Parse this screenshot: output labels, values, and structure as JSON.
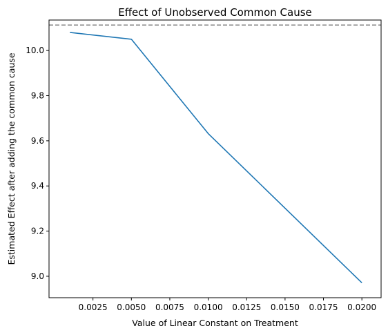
{
  "chart_data": {
    "type": "line",
    "title": "Effect of Unobserved Common Cause",
    "xlabel": "Value of Linear Constant on Treatment",
    "ylabel": "Estimated Effect after adding the common cause",
    "xlim": [
      -0.00036,
      0.02125
    ],
    "ylim": [
      8.905,
      10.135
    ],
    "xticks": [
      0.0025,
      0.005,
      0.0075,
      0.01,
      0.0125,
      0.015,
      0.0175,
      0.02
    ],
    "xtick_labels": [
      "0.0025",
      "0.0050",
      "0.0075",
      "0.0100",
      "0.0125",
      "0.0150",
      "0.0175",
      "0.0200"
    ],
    "yticks": [
      9.0,
      9.2,
      9.4,
      9.6,
      9.8,
      10.0
    ],
    "ytick_labels": [
      "9.0",
      "9.2",
      "9.4",
      "9.6",
      "9.8",
      "10.0"
    ],
    "grid": false,
    "series": [
      {
        "x": [
          0.001,
          0.005,
          0.01,
          0.02
        ],
        "y": [
          10.08,
          10.05,
          9.632,
          8.971
        ],
        "color": "#1f77b4",
        "style": "solid"
      }
    ],
    "reference_lines": [
      {
        "orientation": "horizontal",
        "y": 10.113,
        "color": "#808080",
        "style": "dashed"
      }
    ]
  }
}
